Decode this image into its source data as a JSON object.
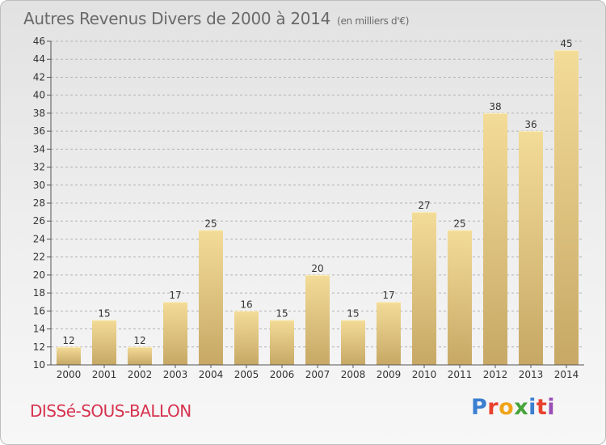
{
  "title": {
    "main": "Autres Revenus Divers de 2000 à 2014",
    "unit": "(en milliers d'€)"
  },
  "commune": "DISSé-SOUS-BALLON",
  "logo": {
    "text": "Proxiti",
    "letters": [
      {
        "ch": "P",
        "color": "#3a7fd0"
      },
      {
        "ch": "r",
        "color": "#e9422e"
      },
      {
        "ch": "o",
        "color": "#f1a418"
      },
      {
        "ch": "x",
        "color": "#47a43a"
      },
      {
        "ch": "i",
        "color": "#3a7fd0"
      },
      {
        "ch": "t",
        "color": "#e9422e"
      },
      {
        "ch": "i",
        "color": "#9b4fb5"
      }
    ]
  },
  "colors": {
    "bar_top": "#f3dc98",
    "bar_bottom": "#c7a865",
    "axis": "#555555",
    "grid": "#b3b3b3",
    "label": "#333333"
  },
  "chart_data": {
    "type": "bar",
    "title": "Autres Revenus Divers de 2000 à 2014",
    "subtitle": "(en milliers d'€)",
    "categories": [
      "2000",
      "2001",
      "2002",
      "2003",
      "2004",
      "2005",
      "2006",
      "2007",
      "2008",
      "2009",
      "2010",
      "2011",
      "2012",
      "2013",
      "2014"
    ],
    "values": [
      12,
      15,
      12,
      17,
      25,
      16,
      15,
      20,
      15,
      17,
      27,
      25,
      38,
      36,
      45
    ],
    "ylim": [
      10,
      46
    ],
    "yticks": [
      10,
      12,
      14,
      16,
      18,
      20,
      22,
      24,
      26,
      28,
      30,
      32,
      34,
      36,
      38,
      40,
      42,
      44,
      46
    ],
    "grid": "horizontal dashed",
    "data_labels": true
  }
}
